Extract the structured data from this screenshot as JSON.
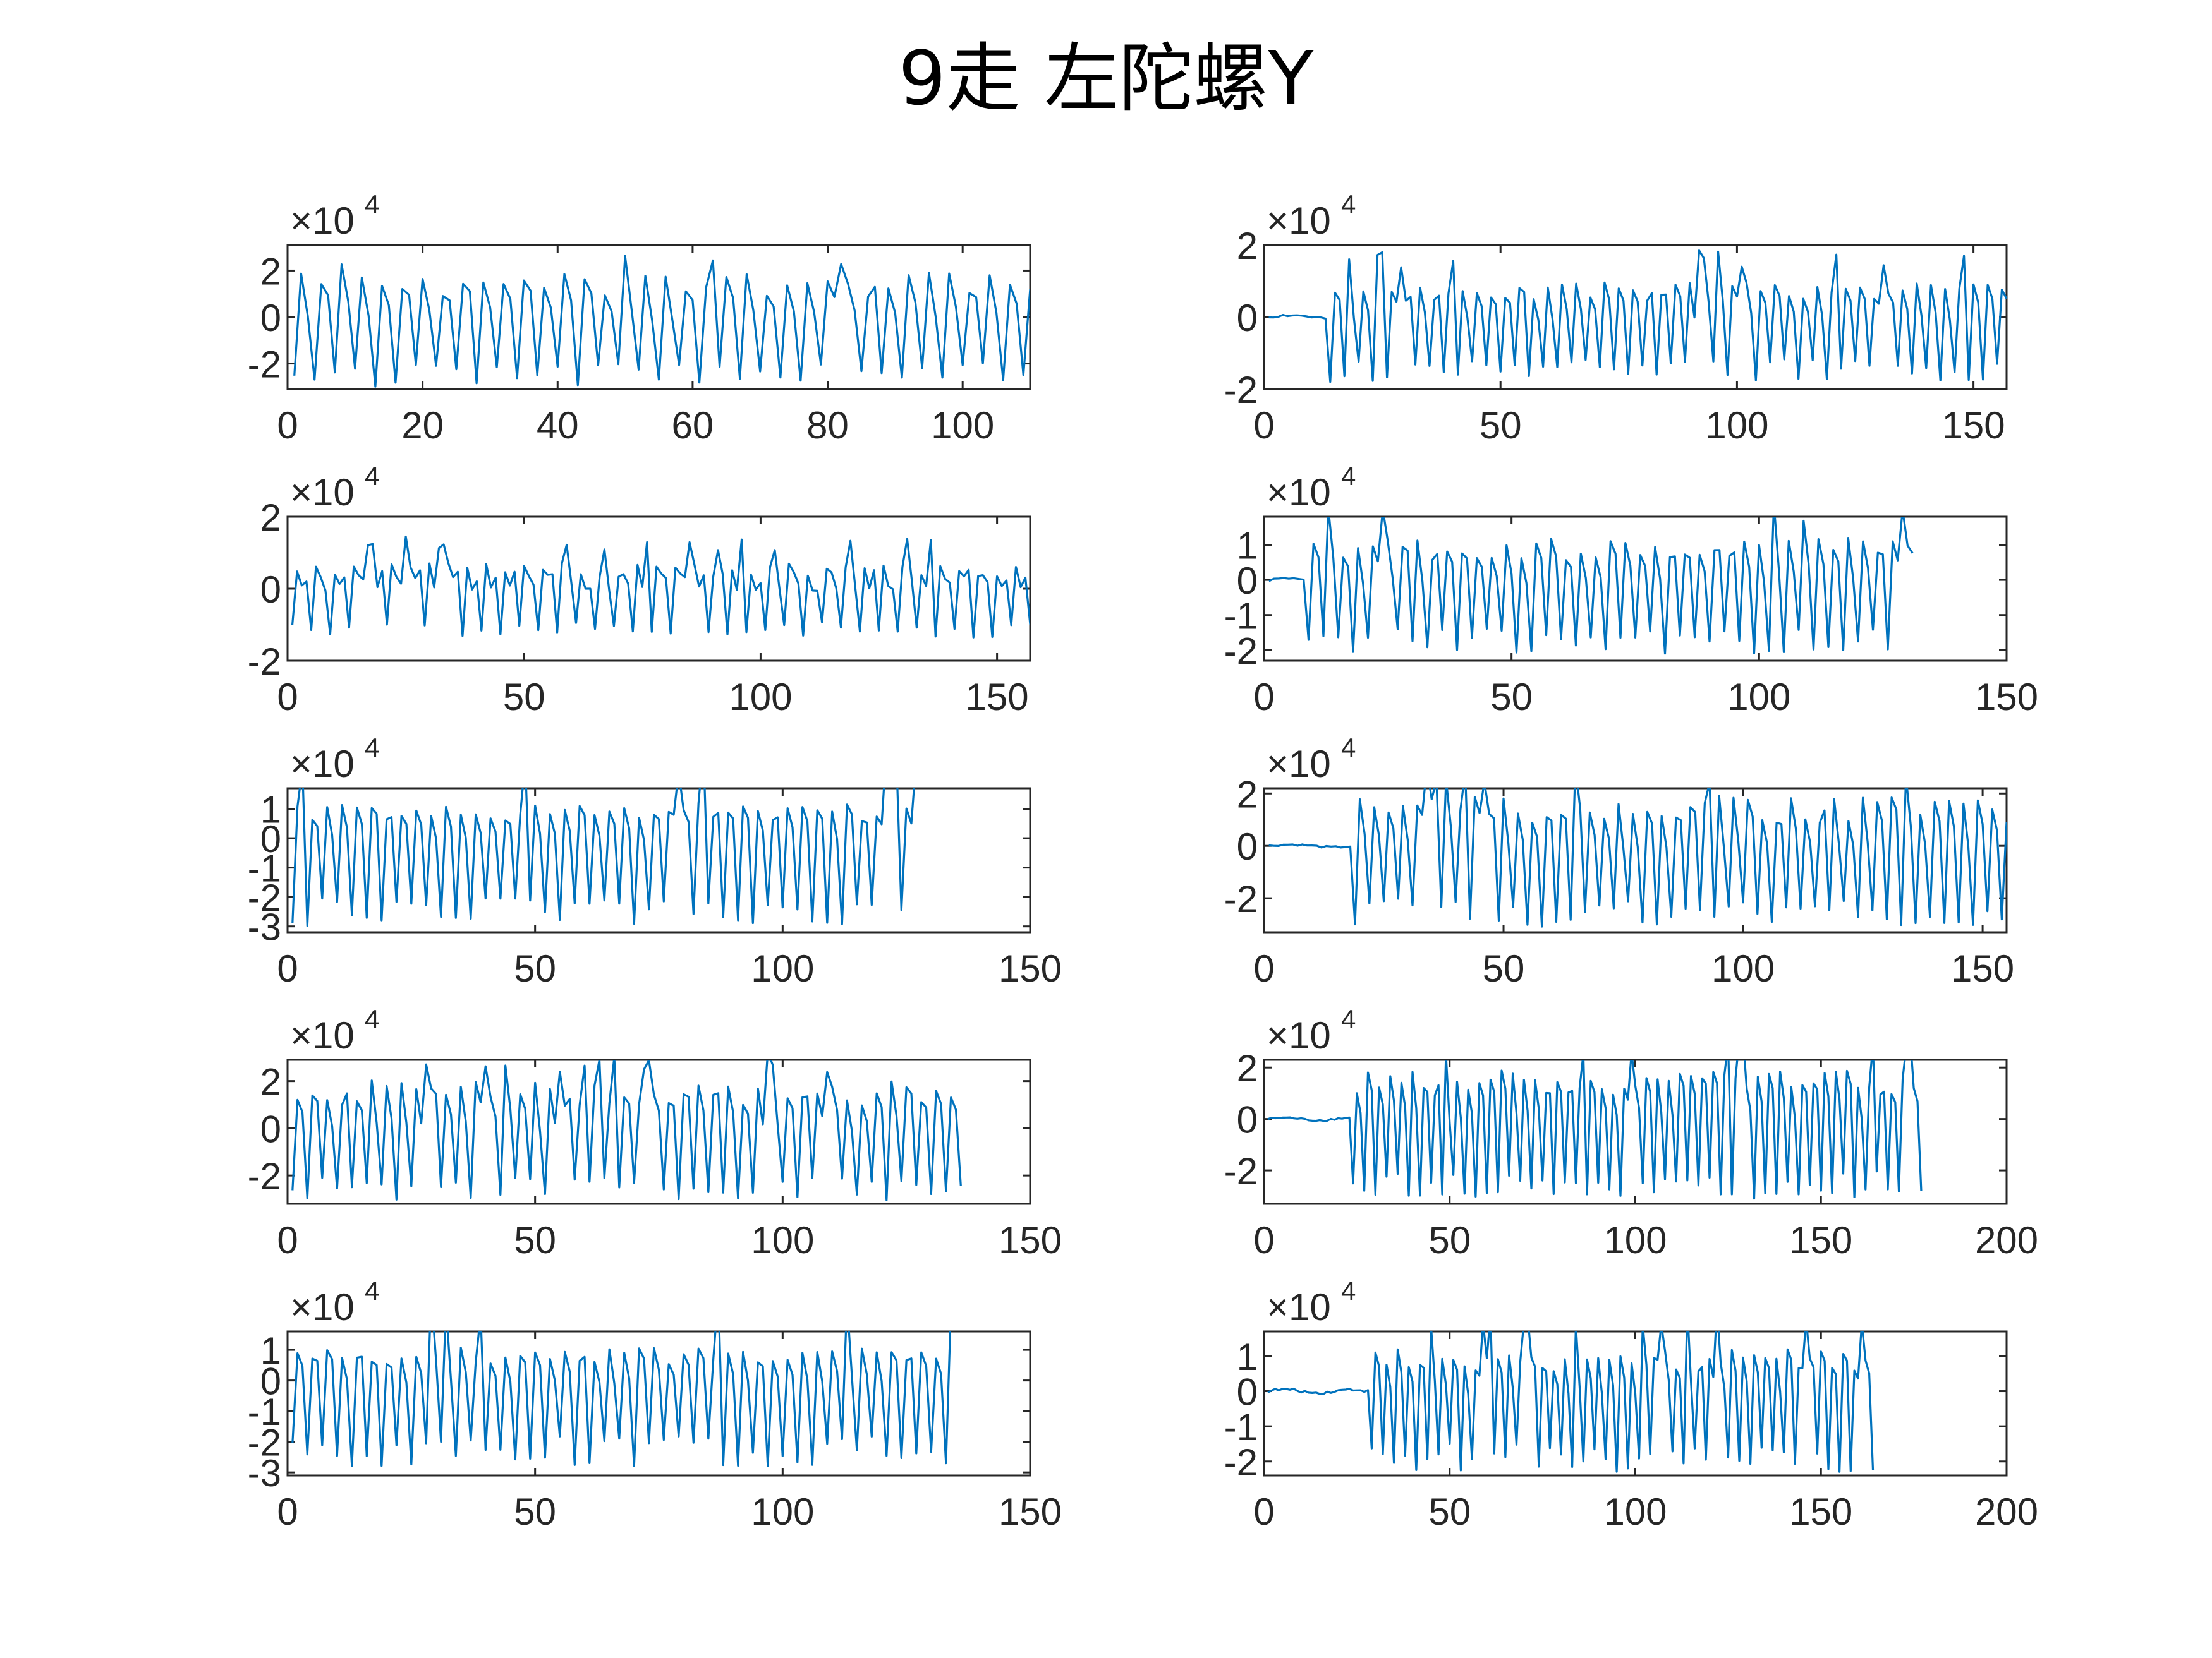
{
  "figure": {
    "title": "9走  左陀螺Y",
    "line_color": "#0072BD",
    "axis_color": "#262626"
  },
  "chart_data": [
    {
      "type": "line",
      "exponent_label": "×10",
      "exponent_power": "4",
      "scale": 10000,
      "xlim": [
        0,
        110
      ],
      "ylim": [
        -3.1,
        3.1
      ],
      "xticks": [
        0,
        20,
        40,
        60,
        80,
        100
      ],
      "yticks": [
        -2,
        0,
        2
      ],
      "yticklabels": [
        "-2",
        "0",
        "2"
      ],
      "n": 110,
      "spike_amp": 3.0,
      "base_amp": 1.6,
      "period": 3,
      "start": 0,
      "seed": 1
    },
    {
      "type": "line",
      "exponent_label": "×10",
      "exponent_power": "4",
      "scale": 10000,
      "xlim": [
        0,
        157
      ],
      "ylim": [
        -2,
        2
      ],
      "xticks": [
        0,
        50,
        100,
        150
      ],
      "yticks": [
        -2,
        0,
        2
      ],
      "yticklabels": [
        "-2",
        "0",
        "2"
      ],
      "n": 157,
      "spike_amp": 1.8,
      "base_amp": 0.8,
      "period": 3,
      "start": 13,
      "seed": 2
    },
    {
      "type": "line",
      "exponent_label": "×10",
      "exponent_power": "4",
      "scale": 10000,
      "xlim": [
        0,
        157
      ],
      "ylim": [
        -2,
        2
      ],
      "xticks": [
        0,
        50,
        100,
        150
      ],
      "yticks": [
        -2,
        0,
        2
      ],
      "yticklabels": [
        "-2",
        "0",
        "2"
      ],
      "n": 157,
      "spike_amp": 1.4,
      "base_amp": 0.6,
      "period": 4,
      "start": 0,
      "seed": 3
    },
    {
      "type": "line",
      "exponent_label": "×10",
      "exponent_power": "4",
      "scale": 10000,
      "xlim": [
        0,
        150
      ],
      "ylim": [
        -2.3,
        1.8
      ],
      "xticks": [
        0,
        50,
        100,
        150
      ],
      "yticks": [
        -2,
        -1,
        0,
        1
      ],
      "yticklabels": [
        "-2",
        "-1",
        "0",
        "1"
      ],
      "n": 131,
      "spike_amp": 2.1,
      "base_amp": 1.0,
      "period": 3,
      "start": 8,
      "seed": 4
    },
    {
      "type": "line",
      "exponent_label": "×10",
      "exponent_power": "4",
      "scale": 10000,
      "xlim": [
        0,
        150
      ],
      "ylim": [
        -3.2,
        1.7
      ],
      "xticks": [
        0,
        50,
        100,
        150
      ],
      "yticks": [
        -3,
        -2,
        -1,
        0,
        1
      ],
      "yticklabels": [
        "-3",
        "-2",
        "-1",
        "0",
        "1"
      ],
      "n": 127,
      "spike_amp": 3.0,
      "base_amp": 1.0,
      "period": 3,
      "start": 0,
      "seed": 5
    },
    {
      "type": "line",
      "exponent_label": "×10",
      "exponent_power": "4",
      "scale": 10000,
      "xlim": [
        0,
        155
      ],
      "ylim": [
        -3.3,
        2.2
      ],
      "xticks": [
        0,
        50,
        100,
        150
      ],
      "yticks": [
        -2,
        0,
        2
      ],
      "yticklabels": [
        "-2",
        "0",
        "2"
      ],
      "n": 155,
      "spike_amp": 3.1,
      "base_amp": 1.6,
      "period": 3,
      "start": 18,
      "seed": 6
    },
    {
      "type": "line",
      "exponent_label": "×10",
      "exponent_power": "4",
      "scale": 10000,
      "xlim": [
        0,
        150
      ],
      "ylim": [
        -3.2,
        2.9
      ],
      "xticks": [
        0,
        50,
        100,
        150
      ],
      "yticks": [
        -2,
        0,
        2
      ],
      "yticklabels": [
        "-2",
        "0",
        "2"
      ],
      "n": 136,
      "spike_amp": 3.1,
      "base_amp": 1.7,
      "period": 3,
      "start": 0,
      "seed": 7
    },
    {
      "type": "line",
      "exponent_label": "×10",
      "exponent_power": "4",
      "scale": 10000,
      "xlim": [
        0,
        200
      ],
      "ylim": [
        -3.3,
        2.3
      ],
      "xticks": [
        0,
        50,
        100,
        150,
        200
      ],
      "yticks": [
        -2,
        0,
        2
      ],
      "yticklabels": [
        "-2",
        "0",
        "2"
      ],
      "n": 177,
      "spike_amp": 3.1,
      "base_amp": 1.6,
      "period": 3,
      "start": 23,
      "seed": 8
    },
    {
      "type": "line",
      "exponent_label": "×10",
      "exponent_power": "4",
      "scale": 10000,
      "xlim": [
        0,
        150
      ],
      "ylim": [
        -3.1,
        1.6
      ],
      "xticks": [
        0,
        50,
        100,
        150
      ],
      "yticks": [
        -3,
        -2,
        -1,
        0,
        1
      ],
      "yticklabels": [
        "-3",
        "-2",
        "-1",
        "0",
        "1"
      ],
      "n": 135,
      "spike_amp": 2.8,
      "base_amp": 0.9,
      "period": 3,
      "start": 0,
      "seed": 9
    },
    {
      "type": "line",
      "exponent_label": "×10",
      "exponent_power": "4",
      "scale": 10000,
      "xlim": [
        0,
        200
      ],
      "ylim": [
        -2.4,
        1.7
      ],
      "xticks": [
        0,
        50,
        100,
        150,
        200
      ],
      "yticks": [
        -2,
        -1,
        0,
        1
      ],
      "yticklabels": [
        "-2",
        "-1",
        "0",
        "1"
      ],
      "n": 164,
      "spike_amp": 2.3,
      "base_amp": 1.0,
      "period": 3,
      "start": 28,
      "seed": 10
    }
  ]
}
